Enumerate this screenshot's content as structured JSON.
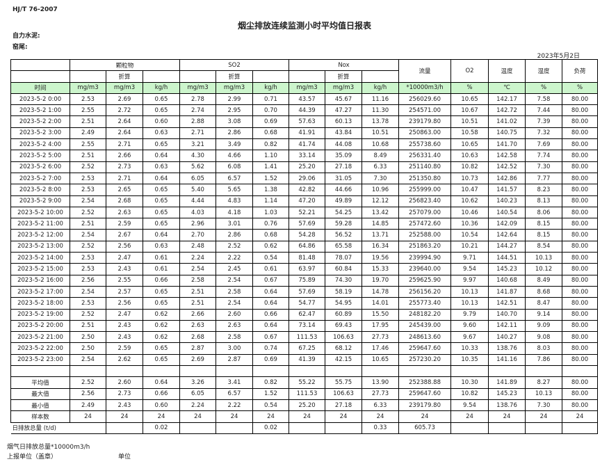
{
  "header": {
    "standard": "HJ/T  76-2007",
    "title": "烟尘排放连续监测小时平均值日报表",
    "company": "自力水泥:",
    "kiln": "窑尾:",
    "date": "2023年5月2日"
  },
  "columns": {
    "pm": "颗粒物",
    "so2": "SO2",
    "nox": "Nox",
    "converted": "折算",
    "flow": "流量",
    "o2": "O2",
    "temp": "温度",
    "humidity": "湿度",
    "load": "负荷",
    "units": [
      "时间",
      "mg/m3",
      "mg/m3",
      "kg/h",
      "mg/m3",
      "mg/m3",
      "kg/h",
      "mg/m3",
      "mg/m3",
      "kg/h",
      "*10000m3/h",
      "%",
      "℃",
      "%",
      "%"
    ]
  },
  "rows": [
    [
      "2023-5-2 0:00",
      "2.53",
      "2.69",
      "0.65",
      "2.78",
      "2.99",
      "0.71",
      "43.57",
      "45.67",
      "11.16",
      "256029.60",
      "10.65",
      "142.17",
      "7.58",
      "80.00"
    ],
    [
      "2023-5-2 1:00",
      "2.55",
      "2.72",
      "0.65",
      "2.74",
      "2.95",
      "0.70",
      "44.39",
      "47.27",
      "11.30",
      "254571.00",
      "10.67",
      "142.72",
      "7.44",
      "80.00"
    ],
    [
      "2023-5-2 2:00",
      "2.51",
      "2.64",
      "0.60",
      "2.88",
      "3.08",
      "0.69",
      "57.63",
      "60.13",
      "13.78",
      "239179.80",
      "10.51",
      "141.02",
      "7.39",
      "80.00"
    ],
    [
      "2023-5-2 3:00",
      "2.49",
      "2.64",
      "0.63",
      "2.71",
      "2.86",
      "0.68",
      "41.91",
      "43.84",
      "10.51",
      "250863.00",
      "10.58",
      "140.75",
      "7.32",
      "80.00"
    ],
    [
      "2023-5-2 4:00",
      "2.55",
      "2.71",
      "0.65",
      "3.21",
      "3.49",
      "0.82",
      "41.74",
      "44.08",
      "10.68",
      "255738.60",
      "10.65",
      "141.70",
      "7.69",
      "80.00"
    ],
    [
      "2023-5-2 5:00",
      "2.51",
      "2.66",
      "0.64",
      "4.30",
      "4.66",
      "1.10",
      "33.14",
      "35.09",
      "8.49",
      "256331.40",
      "10.63",
      "142.58",
      "7.74",
      "80.00"
    ],
    [
      "2023-5-2 6:00",
      "2.52",
      "2.73",
      "0.63",
      "5.62",
      "6.08",
      "1.41",
      "25.20",
      "27.18",
      "6.33",
      "251140.80",
      "10.82",
      "142.52",
      "7.30",
      "80.00"
    ],
    [
      "2023-5-2 7:00",
      "2.53",
      "2.71",
      "0.64",
      "6.05",
      "6.57",
      "1.52",
      "29.06",
      "31.05",
      "7.30",
      "251350.80",
      "10.73",
      "142.86",
      "7.77",
      "80.00"
    ],
    [
      "2023-5-2 8:00",
      "2.53",
      "2.65",
      "0.65",
      "5.40",
      "5.65",
      "1.38",
      "42.82",
      "44.66",
      "10.96",
      "255999.00",
      "10.47",
      "141.57",
      "8.23",
      "80.00"
    ],
    [
      "2023-5-2 9:00",
      "2.54",
      "2.68",
      "0.65",
      "4.44",
      "4.83",
      "1.14",
      "47.20",
      "49.89",
      "12.12",
      "256823.40",
      "10.62",
      "140.23",
      "8.13",
      "80.00"
    ],
    [
      "2023-5-2 10:00",
      "2.52",
      "2.63",
      "0.65",
      "4.03",
      "4.18",
      "1.03",
      "52.21",
      "54.25",
      "13.42",
      "257079.00",
      "10.46",
      "140.54",
      "8.06",
      "80.00"
    ],
    [
      "2023-5-2 11:00",
      "2.51",
      "2.59",
      "0.65",
      "2.96",
      "3.01",
      "0.76",
      "57.69",
      "59.28",
      "14.85",
      "257472.60",
      "10.36",
      "142.09",
      "8.15",
      "80.00"
    ],
    [
      "2023-5-2 12:00",
      "2.54",
      "2.67",
      "0.64",
      "2.70",
      "2.86",
      "0.68",
      "54.28",
      "56.52",
      "13.71",
      "252588.00",
      "10.54",
      "142.64",
      "8.15",
      "80.00"
    ],
    [
      "2023-5-2 13:00",
      "2.52",
      "2.56",
      "0.63",
      "2.48",
      "2.52",
      "0.62",
      "64.86",
      "65.58",
      "16.34",
      "251863.20",
      "10.21",
      "144.27",
      "8.54",
      "80.00"
    ],
    [
      "2023-5-2 14:00",
      "2.53",
      "2.47",
      "0.61",
      "2.24",
      "2.22",
      "0.54",
      "81.48",
      "78.07",
      "19.56",
      "239994.90",
      "9.71",
      "144.51",
      "10.13",
      "80.00"
    ],
    [
      "2023-5-2 15:00",
      "2.53",
      "2.43",
      "0.61",
      "2.54",
      "2.45",
      "0.61",
      "63.97",
      "60.84",
      "15.33",
      "239640.00",
      "9.54",
      "145.23",
      "10.12",
      "80.00"
    ],
    [
      "2023-5-2 16:00",
      "2.56",
      "2.55",
      "0.66",
      "2.58",
      "2.54",
      "0.67",
      "75.89",
      "74.30",
      "19.70",
      "259625.90",
      "9.97",
      "140.68",
      "8.49",
      "80.00"
    ],
    [
      "2023-5-2 17:00",
      "2.54",
      "2.57",
      "0.65",
      "2.51",
      "2.58",
      "0.64",
      "57.69",
      "58.19",
      "14.78",
      "256156.20",
      "10.13",
      "141.87",
      "8.68",
      "80.00"
    ],
    [
      "2023-5-2 18:00",
      "2.53",
      "2.56",
      "0.65",
      "2.51",
      "2.54",
      "0.64",
      "54.77",
      "54.95",
      "14.01",
      "255773.40",
      "10.13",
      "142.51",
      "8.47",
      "80.00"
    ],
    [
      "2023-5-2 19:00",
      "2.52",
      "2.47",
      "0.62",
      "2.66",
      "2.60",
      "0.66",
      "62.47",
      "60.89",
      "15.50",
      "248182.20",
      "9.79",
      "140.70",
      "9.14",
      "80.00"
    ],
    [
      "2023-5-2 20:00",
      "2.51",
      "2.43",
      "0.62",
      "2.63",
      "2.63",
      "0.64",
      "73.14",
      "69.43",
      "17.95",
      "245439.00",
      "9.60",
      "142.11",
      "9.09",
      "80.00"
    ],
    [
      "2023-5-2 21:00",
      "2.50",
      "2.43",
      "0.62",
      "2.68",
      "2.58",
      "0.67",
      "111.53",
      "106.63",
      "27.73",
      "248613.60",
      "9.67",
      "140.27",
      "9.08",
      "80.00"
    ],
    [
      "2023-5-2 22:00",
      "2.50",
      "2.59",
      "0.65",
      "2.87",
      "3.00",
      "0.74",
      "67.25",
      "68.12",
      "17.46",
      "259647.60",
      "10.33",
      "138.76",
      "8.03",
      "80.00"
    ],
    [
      "2023-5-2 23:00",
      "2.54",
      "2.62",
      "0.65",
      "2.69",
      "2.87",
      "0.69",
      "41.39",
      "42.15",
      "10.65",
      "257230.20",
      "10.35",
      "141.16",
      "7.86",
      "80.00"
    ]
  ],
  "stats": [
    [
      "平均值",
      "2.52",
      "2.60",
      "0.64",
      "3.26",
      "3.41",
      "0.82",
      "55.22",
      "55.75",
      "13.90",
      "252388.88",
      "10.30",
      "141.89",
      "8.27",
      "80.00"
    ],
    [
      "最大值",
      "2.56",
      "2.73",
      "0.66",
      "6.05",
      "6.57",
      "1.52",
      "111.53",
      "106.63",
      "27.73",
      "259647.60",
      "10.82",
      "145.23",
      "10.13",
      "80.00"
    ],
    [
      "最小值",
      "2.49",
      "2.43",
      "0.60",
      "2.24",
      "2.22",
      "0.54",
      "25.20",
      "27.18",
      "6.33",
      "239179.80",
      "9.54",
      "138.76",
      "7.30",
      "80.00"
    ],
    [
      "样本数",
      "24",
      "24",
      "24",
      "24",
      "24",
      "24",
      "24",
      "24",
      "24",
      "24",
      "24",
      "24",
      "24",
      "24"
    ]
  ],
  "daily_total": {
    "label": "日排放总量 (t/d)",
    "pm_kg": "0.02",
    "so2_kg": "0.02",
    "nox_kg": "0.33",
    "flow": "605.73"
  },
  "footer": {
    "flue_gas_total": "烟气日排放总量*10000m3/h",
    "reporter": "上报单位（盖章）",
    "unit": "单位"
  }
}
